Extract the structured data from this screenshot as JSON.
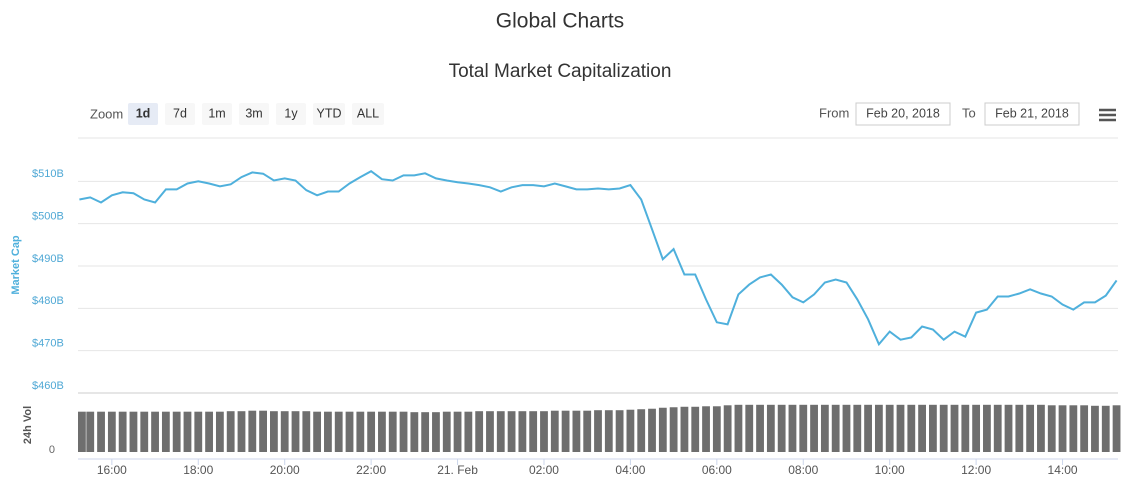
{
  "page_title": "Global Charts",
  "controls": {
    "zoom_label": "Zoom",
    "ranges": [
      "1d",
      "7d",
      "1m",
      "3m",
      "1y",
      "YTD",
      "ALL"
    ],
    "selected_range": 0,
    "from_label": "From",
    "from": "Feb 20, 2018",
    "to_label": "To",
    "to": "Feb 21, 2018"
  },
  "chart_data": {
    "type": "line",
    "title": "Total Market Capitalization",
    "ylabel": "Market Cap",
    "y2label": "24h Vol",
    "x": [
      "2018-02-20 15:15",
      "2018-02-20 15:30",
      "2018-02-20 15:45",
      "2018-02-20 16:00",
      "2018-02-20 16:15",
      "2018-02-20 16:30",
      "2018-02-20 16:45",
      "2018-02-20 17:00",
      "2018-02-20 17:15",
      "2018-02-20 17:30",
      "2018-02-20 17:45",
      "2018-02-20 18:00",
      "2018-02-20 18:15",
      "2018-02-20 18:30",
      "2018-02-20 18:45",
      "2018-02-20 19:00",
      "2018-02-20 19:15",
      "2018-02-20 19:30",
      "2018-02-20 19:45",
      "2018-02-20 20:00",
      "2018-02-20 20:15",
      "2018-02-20 20:30",
      "2018-02-20 20:45",
      "2018-02-20 21:00",
      "2018-02-20 21:15",
      "2018-02-20 21:30",
      "2018-02-20 21:45",
      "2018-02-20 22:00",
      "2018-02-20 22:15",
      "2018-02-20 22:30",
      "2018-02-20 22:45",
      "2018-02-20 23:00",
      "2018-02-20 23:15",
      "2018-02-20 23:30",
      "2018-02-20 23:45",
      "2018-02-21 00:00",
      "2018-02-21 00:15",
      "2018-02-21 00:30",
      "2018-02-21 00:45",
      "2018-02-21 01:00",
      "2018-02-21 01:15",
      "2018-02-21 01:30",
      "2018-02-21 01:45",
      "2018-02-21 02:00",
      "2018-02-21 02:15",
      "2018-02-21 02:30",
      "2018-02-21 02:45",
      "2018-02-21 03:00",
      "2018-02-21 03:15",
      "2018-02-21 03:30",
      "2018-02-21 03:45",
      "2018-02-21 04:00",
      "2018-02-21 04:15",
      "2018-02-21 04:30",
      "2018-02-21 04:45",
      "2018-02-21 05:00",
      "2018-02-21 05:15",
      "2018-02-21 05:30",
      "2018-02-21 05:45",
      "2018-02-21 06:00",
      "2018-02-21 06:15",
      "2018-02-21 06:30",
      "2018-02-21 06:45",
      "2018-02-21 07:00",
      "2018-02-21 07:15",
      "2018-02-21 07:30",
      "2018-02-21 07:45",
      "2018-02-21 08:00",
      "2018-02-21 08:15",
      "2018-02-21 08:30",
      "2018-02-21 08:45",
      "2018-02-21 09:00",
      "2018-02-21 09:15",
      "2018-02-21 09:30",
      "2018-02-21 09:45",
      "2018-02-21 10:00",
      "2018-02-21 10:15",
      "2018-02-21 10:30",
      "2018-02-21 10:45",
      "2018-02-21 11:00",
      "2018-02-21 11:15",
      "2018-02-21 11:30",
      "2018-02-21 11:45",
      "2018-02-21 12:00",
      "2018-02-21 12:15",
      "2018-02-21 12:30",
      "2018-02-21 12:45",
      "2018-02-21 13:00",
      "2018-02-21 13:15",
      "2018-02-21 13:30",
      "2018-02-21 13:45",
      "2018-02-21 14:00",
      "2018-02-21 14:15",
      "2018-02-21 14:30",
      "2018-02-21 14:45",
      "2018-02-21 15:00",
      "2018-02-21 15:15"
    ],
    "series": [
      {
        "color": "#4fb0dc",
        "values": [
          505.7,
          506.2,
          505.0,
          506.7,
          507.4,
          507.2,
          505.7,
          505.0,
          508.1,
          508.1,
          509.5,
          510.0,
          509.5,
          508.8,
          509.3,
          511.0,
          512.1,
          511.8,
          510.2,
          510.7,
          510.2,
          507.9,
          506.7,
          507.6,
          507.6,
          509.5,
          511.0,
          512.4,
          510.5,
          510.2,
          511.4,
          511.4,
          511.9,
          510.7,
          510.2,
          509.8,
          509.5,
          509.1,
          508.6,
          507.6,
          508.6,
          509.1,
          509.1,
          508.8,
          509.5,
          508.8,
          508.1,
          508.1,
          508.3,
          508.1,
          508.3,
          509.1,
          505.7,
          498.7,
          491.6,
          494.0,
          488.0,
          488.0,
          482.1,
          476.7,
          476.2,
          483.3,
          485.6,
          487.3,
          488.0,
          485.6,
          482.6,
          481.4,
          483.3,
          486.1,
          486.8,
          486.1,
          482.1,
          477.4,
          471.5,
          474.5,
          472.6,
          473.1,
          475.7,
          475.0,
          472.6,
          474.5,
          473.3,
          479.0,
          479.7,
          482.8,
          482.8,
          483.5,
          484.5,
          483.5,
          482.8,
          480.9,
          479.7,
          481.4,
          481.4,
          483.0,
          486.6
        ]
      },
      {
        "type": "bar",
        "axis": "y2",
        "color": "#6e6e6e",
        "values": [
          8.2,
          8.2,
          8.2,
          8.2,
          8.2,
          8.2,
          8.2,
          8.2,
          8.2,
          8.2,
          8.2,
          8.2,
          8.2,
          8.2,
          8.3,
          8.3,
          8.4,
          8.4,
          8.3,
          8.3,
          8.3,
          8.3,
          8.2,
          8.2,
          8.2,
          8.2,
          8.2,
          8.2,
          8.2,
          8.2,
          8.2,
          8.1,
          8.1,
          8.1,
          8.2,
          8.2,
          8.2,
          8.3,
          8.3,
          8.3,
          8.3,
          8.3,
          8.3,
          8.3,
          8.4,
          8.4,
          8.4,
          8.4,
          8.5,
          8.5,
          8.5,
          8.6,
          8.7,
          8.8,
          9.0,
          9.1,
          9.2,
          9.2,
          9.3,
          9.3,
          9.5,
          9.6,
          9.6,
          9.6,
          9.6,
          9.6,
          9.6,
          9.6,
          9.6,
          9.6,
          9.6,
          9.6,
          9.6,
          9.6,
          9.6,
          9.6,
          9.6,
          9.6,
          9.6,
          9.6,
          9.6,
          9.6,
          9.6,
          9.6,
          9.6,
          9.6,
          9.6,
          9.6,
          9.6,
          9.6,
          9.5,
          9.5,
          9.5,
          9.5,
          9.4,
          9.4,
          9.5
        ]
      }
    ],
    "xlim": [
      "2018-02-20 15:13",
      "2018-02-21 15:17"
    ],
    "xticks": [
      {
        "value": "2018-02-20 16:00",
        "label": "16:00"
      },
      {
        "value": "2018-02-20 18:00",
        "label": "18:00"
      },
      {
        "value": "2018-02-20 20:00",
        "label": "20:00"
      },
      {
        "value": "2018-02-20 22:00",
        "label": "22:00"
      },
      {
        "value": "2018-02-21 00:00",
        "label": "21. Feb"
      },
      {
        "value": "2018-02-21 02:00",
        "label": "02:00"
      },
      {
        "value": "2018-02-21 04:00",
        "label": "04:00"
      },
      {
        "value": "2018-02-21 06:00",
        "label": "06:00"
      },
      {
        "value": "2018-02-21 08:00",
        "label": "08:00"
      },
      {
        "value": "2018-02-21 10:00",
        "label": "10:00"
      },
      {
        "value": "2018-02-21 12:00",
        "label": "12:00"
      },
      {
        "value": "2018-02-21 14:00",
        "label": "14:00"
      }
    ],
    "ylim": [
      460,
      520
    ],
    "yticks": [
      {
        "value": 460,
        "label": "$460B"
      },
      {
        "value": 470,
        "label": "$470B"
      },
      {
        "value": 480,
        "label": "$480B"
      },
      {
        "value": 490,
        "label": "$490B"
      },
      {
        "value": 500,
        "label": "$500B"
      },
      {
        "value": 510,
        "label": "$510B"
      }
    ],
    "y2lim": [
      0,
      12
    ],
    "y2ticks": [
      0
    ],
    "grid": true
  }
}
